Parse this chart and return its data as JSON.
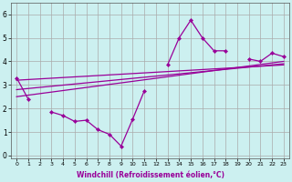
{
  "x_data": [
    0,
    1,
    2,
    3,
    4,
    5,
    6,
    7,
    8,
    9,
    10,
    11,
    12,
    13,
    14,
    15,
    16,
    17,
    18,
    19,
    20,
    21,
    22,
    23
  ],
  "line1": [
    3.3,
    2.4,
    null,
    1.85,
    1.7,
    1.45,
    1.5,
    1.1,
    0.9,
    0.4,
    1.55,
    2.75,
    null,
    3.85,
    5.0,
    5.75,
    5.0,
    4.45,
    4.45,
    null,
    4.1,
    4.0,
    4.35,
    4.2
  ],
  "reg1_start": 3.2,
  "reg1_end": 3.85,
  "reg2_start": 2.8,
  "reg2_end": 3.9,
  "reg3_start": 2.5,
  "reg3_end": 4.0,
  "line_color": "#990099",
  "bg_color": "#ccf0f0",
  "grid_color": "#aaaaaa",
  "xlabel": "Windchill (Refroidissement éolien,°C)",
  "xlim": [
    -0.5,
    23.5
  ],
  "ylim": [
    -0.1,
    6.5
  ],
  "xticks": [
    0,
    1,
    2,
    3,
    4,
    5,
    6,
    7,
    8,
    9,
    10,
    11,
    12,
    13,
    14,
    15,
    16,
    17,
    18,
    19,
    20,
    21,
    22,
    23
  ],
  "yticks": [
    0,
    1,
    2,
    3,
    4,
    5,
    6
  ],
  "xlabel_fontsize": 5.5,
  "tick_fontsize_x": 4.5,
  "tick_fontsize_y": 5.5
}
